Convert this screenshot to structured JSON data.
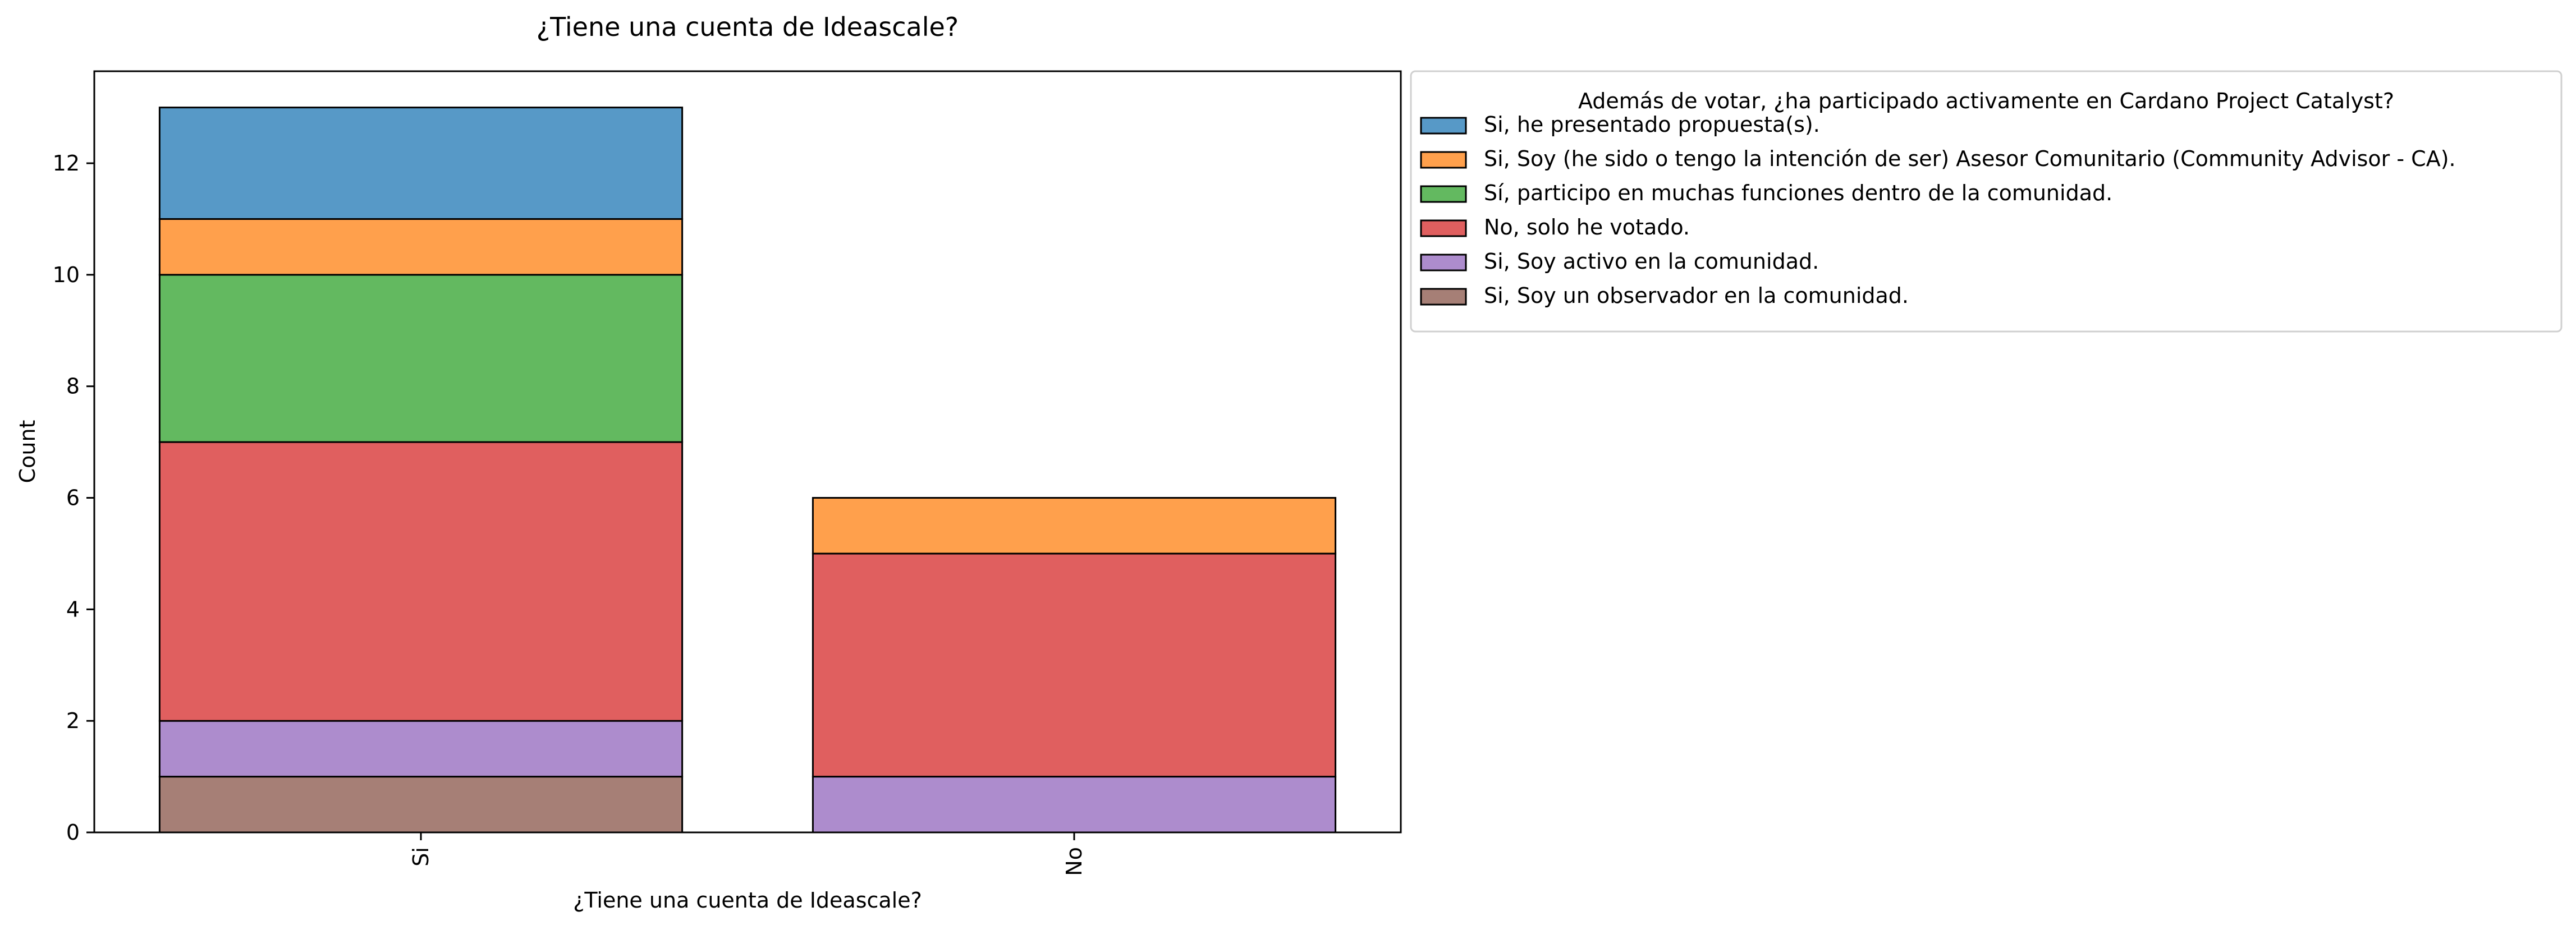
{
  "chart_data": {
    "type": "bar",
    "stacked": true,
    "title": "¿Tiene una cuenta de Ideascale?",
    "xlabel": "¿Tiene una cuenta de Ideascale?",
    "ylabel": "Count",
    "categories": [
      "Si",
      "No"
    ],
    "ylim": [
      0,
      13.65
    ],
    "yticks": [
      0,
      2,
      4,
      6,
      8,
      10,
      12
    ],
    "grid": false,
    "legend": {
      "title": "Además de votar, ¿ha participado activamente en Cardano Project Catalyst?",
      "placement": "outside-right-top"
    },
    "series": [
      {
        "name": "Si, he presentado propuesta(s).",
        "values": [
          2,
          0
        ],
        "color": "#5799c7"
      },
      {
        "name": "Si, Soy (he sido o tengo la intención de ser) Asesor Comunitario (Community Advisor - CA).",
        "values": [
          1,
          1
        ],
        "color": "#ffa04c"
      },
      {
        "name": "Sí, participo en muchas funciones dentro de la comunidad.",
        "values": [
          3,
          0
        ],
        "color": "#63b960"
      },
      {
        "name": "No, solo he votado.",
        "values": [
          5,
          4
        ],
        "color": "#e05f5f"
      },
      {
        "name": "Si, Soy activo en la comunidad.",
        "values": [
          1,
          1
        ],
        "color": "#ad8ccd"
      },
      {
        "name": "Si, Soy un observador en la comunidad.",
        "values": [
          1,
          0
        ],
        "color": "#a67f76"
      }
    ],
    "stack_order_bottom_to_top": [
      5,
      4,
      3,
      2,
      1,
      0
    ]
  }
}
